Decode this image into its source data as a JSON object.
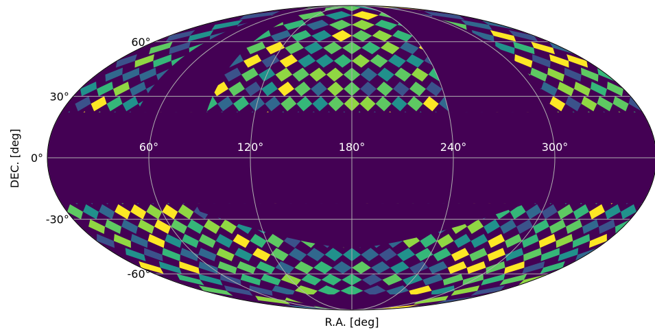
{
  "chart_data": {
    "type": "heatmap",
    "projection": "mollweide",
    "xlabel": "R.A. [deg]",
    "ylabel": "DEC. [deg]",
    "ra_tick_labels": [
      "60°",
      "120°",
      "180°",
      "240°",
      "300°"
    ],
    "dec_tick_labels": [
      "60°",
      "30°",
      "0°",
      "-30°",
      "-60°"
    ],
    "ra_ticks": [
      60,
      120,
      180,
      240,
      300
    ],
    "dec_ticks": [
      60,
      30,
      0,
      -30,
      -60
    ],
    "ra_range": [
      0,
      360
    ],
    "dec_range": [
      -90,
      90
    ],
    "grid": true,
    "colormap": "viridis",
    "background_color": "#440154",
    "colors": [
      "#3b528b",
      "#21918c",
      "#5ec962",
      "#fde725",
      "#31688e",
      "#35b779",
      "#90d743"
    ],
    "coverage": [
      {
        "ra": [
          0,
          360
        ],
        "dec": [
          22,
          90
        ],
        "description": "northern band"
      },
      {
        "ra": [
          0,
          360
        ],
        "dec": [
          -90,
          -22
        ],
        "description": "southern band"
      }
    ],
    "masked_regions": [
      {
        "ra": [
          0,
          360
        ],
        "dec": [
          -22,
          22
        ]
      },
      {
        "ra": [
          47,
          90
        ],
        "dec": [
          22,
          90
        ]
      },
      {
        "ra": [
          240,
          305
        ],
        "dec": [
          22,
          90
        ]
      },
      {
        "ra": [
          83,
          300
        ],
        "dec": [
          -90,
          -22
        ],
        "cap_dec_at_ra_180": -45
      }
    ]
  }
}
